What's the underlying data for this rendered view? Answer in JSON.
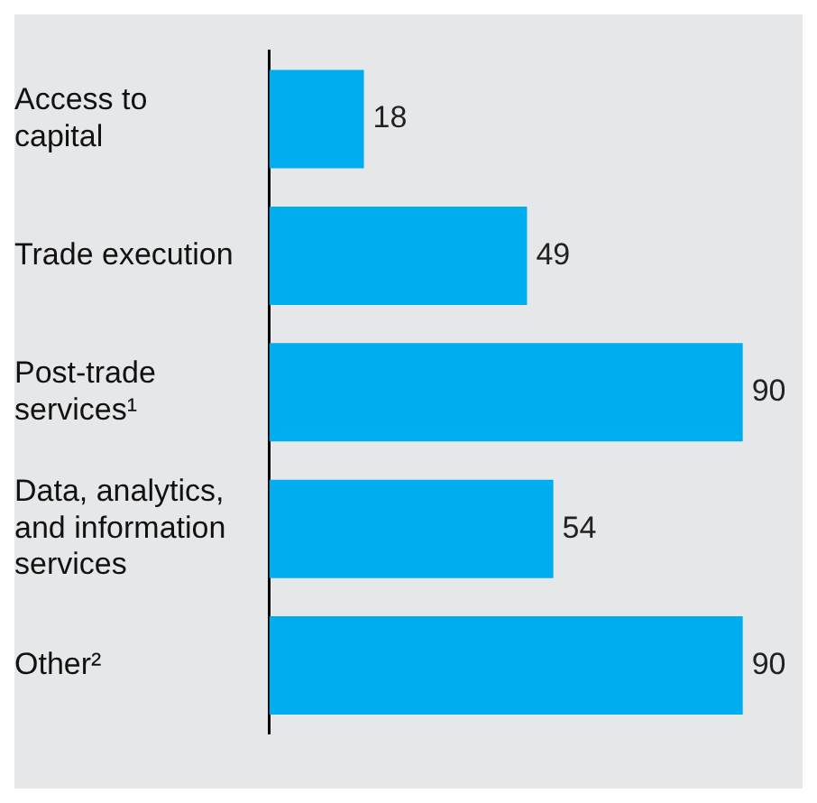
{
  "chart_data": {
    "type": "bar",
    "orientation": "horizontal",
    "categories": [
      "Access to capital",
      "Trade execution",
      "Post-trade services¹",
      "Data, analytics, and information services",
      "Other²"
    ],
    "values": [
      18,
      49,
      90,
      54,
      90
    ],
    "color": "#00aeef",
    "data_labels": true,
    "legend": false,
    "tick_labels": "y"
  }
}
